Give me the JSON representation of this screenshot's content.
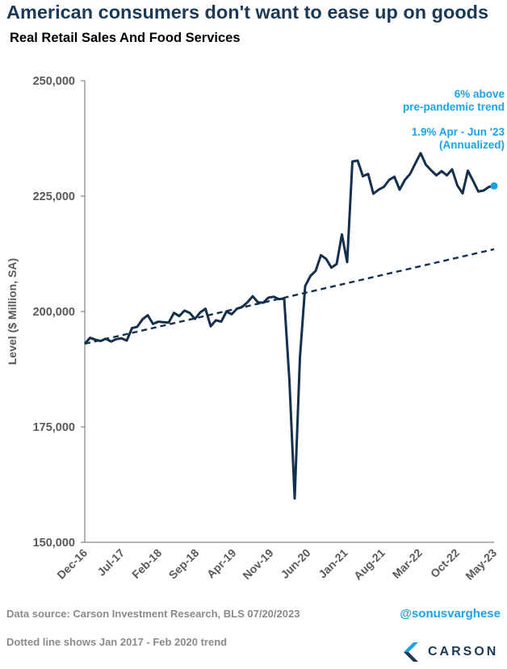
{
  "header": {
    "title": "American consumers don't want to ease up on goods",
    "subtitle": "Real Retail Sales And Food Services"
  },
  "annotations": {
    "line1": "6% above",
    "line2": "pre-pandemic trend",
    "line3": "1.9% Apr - Jun '23",
    "line4": "(Annualized)"
  },
  "footer": {
    "source": "Data source: Carson Investment Research, BLS   07/20/2023",
    "note": "Dotted line shows Jan 2017 - Feb 2020 trend",
    "handle": "@sonusvarghese",
    "brand": "CARSON"
  },
  "colors": {
    "series": "#14304d",
    "accent": "#1aa3e8",
    "title": "#1b3a57",
    "axis": "#333333"
  },
  "chart_data": {
    "type": "line",
    "title": "Real Retail Sales And Food Services",
    "ylabel": "Level ($ Million, SA)",
    "xlabel": "",
    "ylim": [
      150000,
      250000
    ],
    "yticks": [
      150000,
      175000,
      200000,
      225000,
      250000
    ],
    "ytick_labels": [
      "150,000",
      "175,000",
      "200,000",
      "225,000",
      "250,000"
    ],
    "xtick_labels": [
      "Dec-16",
      "Jul-17",
      "Feb-18",
      "Sep-18",
      "Apr-19",
      "Nov-19",
      "Jun-20",
      "Jan-21",
      "Aug-21",
      "Mar-22",
      "Oct-22",
      "May-23"
    ],
    "x_start": "Dec-16",
    "x_end": "Jun-23",
    "grid": false,
    "series": [
      {
        "values": [
          193000,
          194300,
          193900,
          193600,
          194100,
          193500,
          194000,
          194200,
          193700,
          196400,
          196700,
          198300,
          199200,
          197300,
          197800,
          197700,
          197600,
          199700,
          199000,
          200200,
          199700,
          198400,
          199800,
          200600,
          196800,
          198100,
          197800,
          200000,
          199400,
          200600,
          201000,
          202000,
          203300,
          202000,
          201900,
          203000,
          203200,
          202700,
          202800,
          185000,
          159500,
          190000,
          205500,
          207700,
          208800,
          212200,
          211400,
          209500,
          210300,
          216700,
          210700,
          232500,
          232700,
          229300,
          229800,
          225500,
          226400,
          227000,
          228500,
          229200,
          226400,
          228500,
          229800,
          232100,
          234300,
          231800,
          230600,
          229500,
          230400,
          229500,
          230800,
          227300,
          225600,
          230500,
          228300,
          226000,
          226200,
          227000,
          227200
        ]
      },
      {
        "values": [
          193000,
          213500
        ]
      }
    ]
  }
}
